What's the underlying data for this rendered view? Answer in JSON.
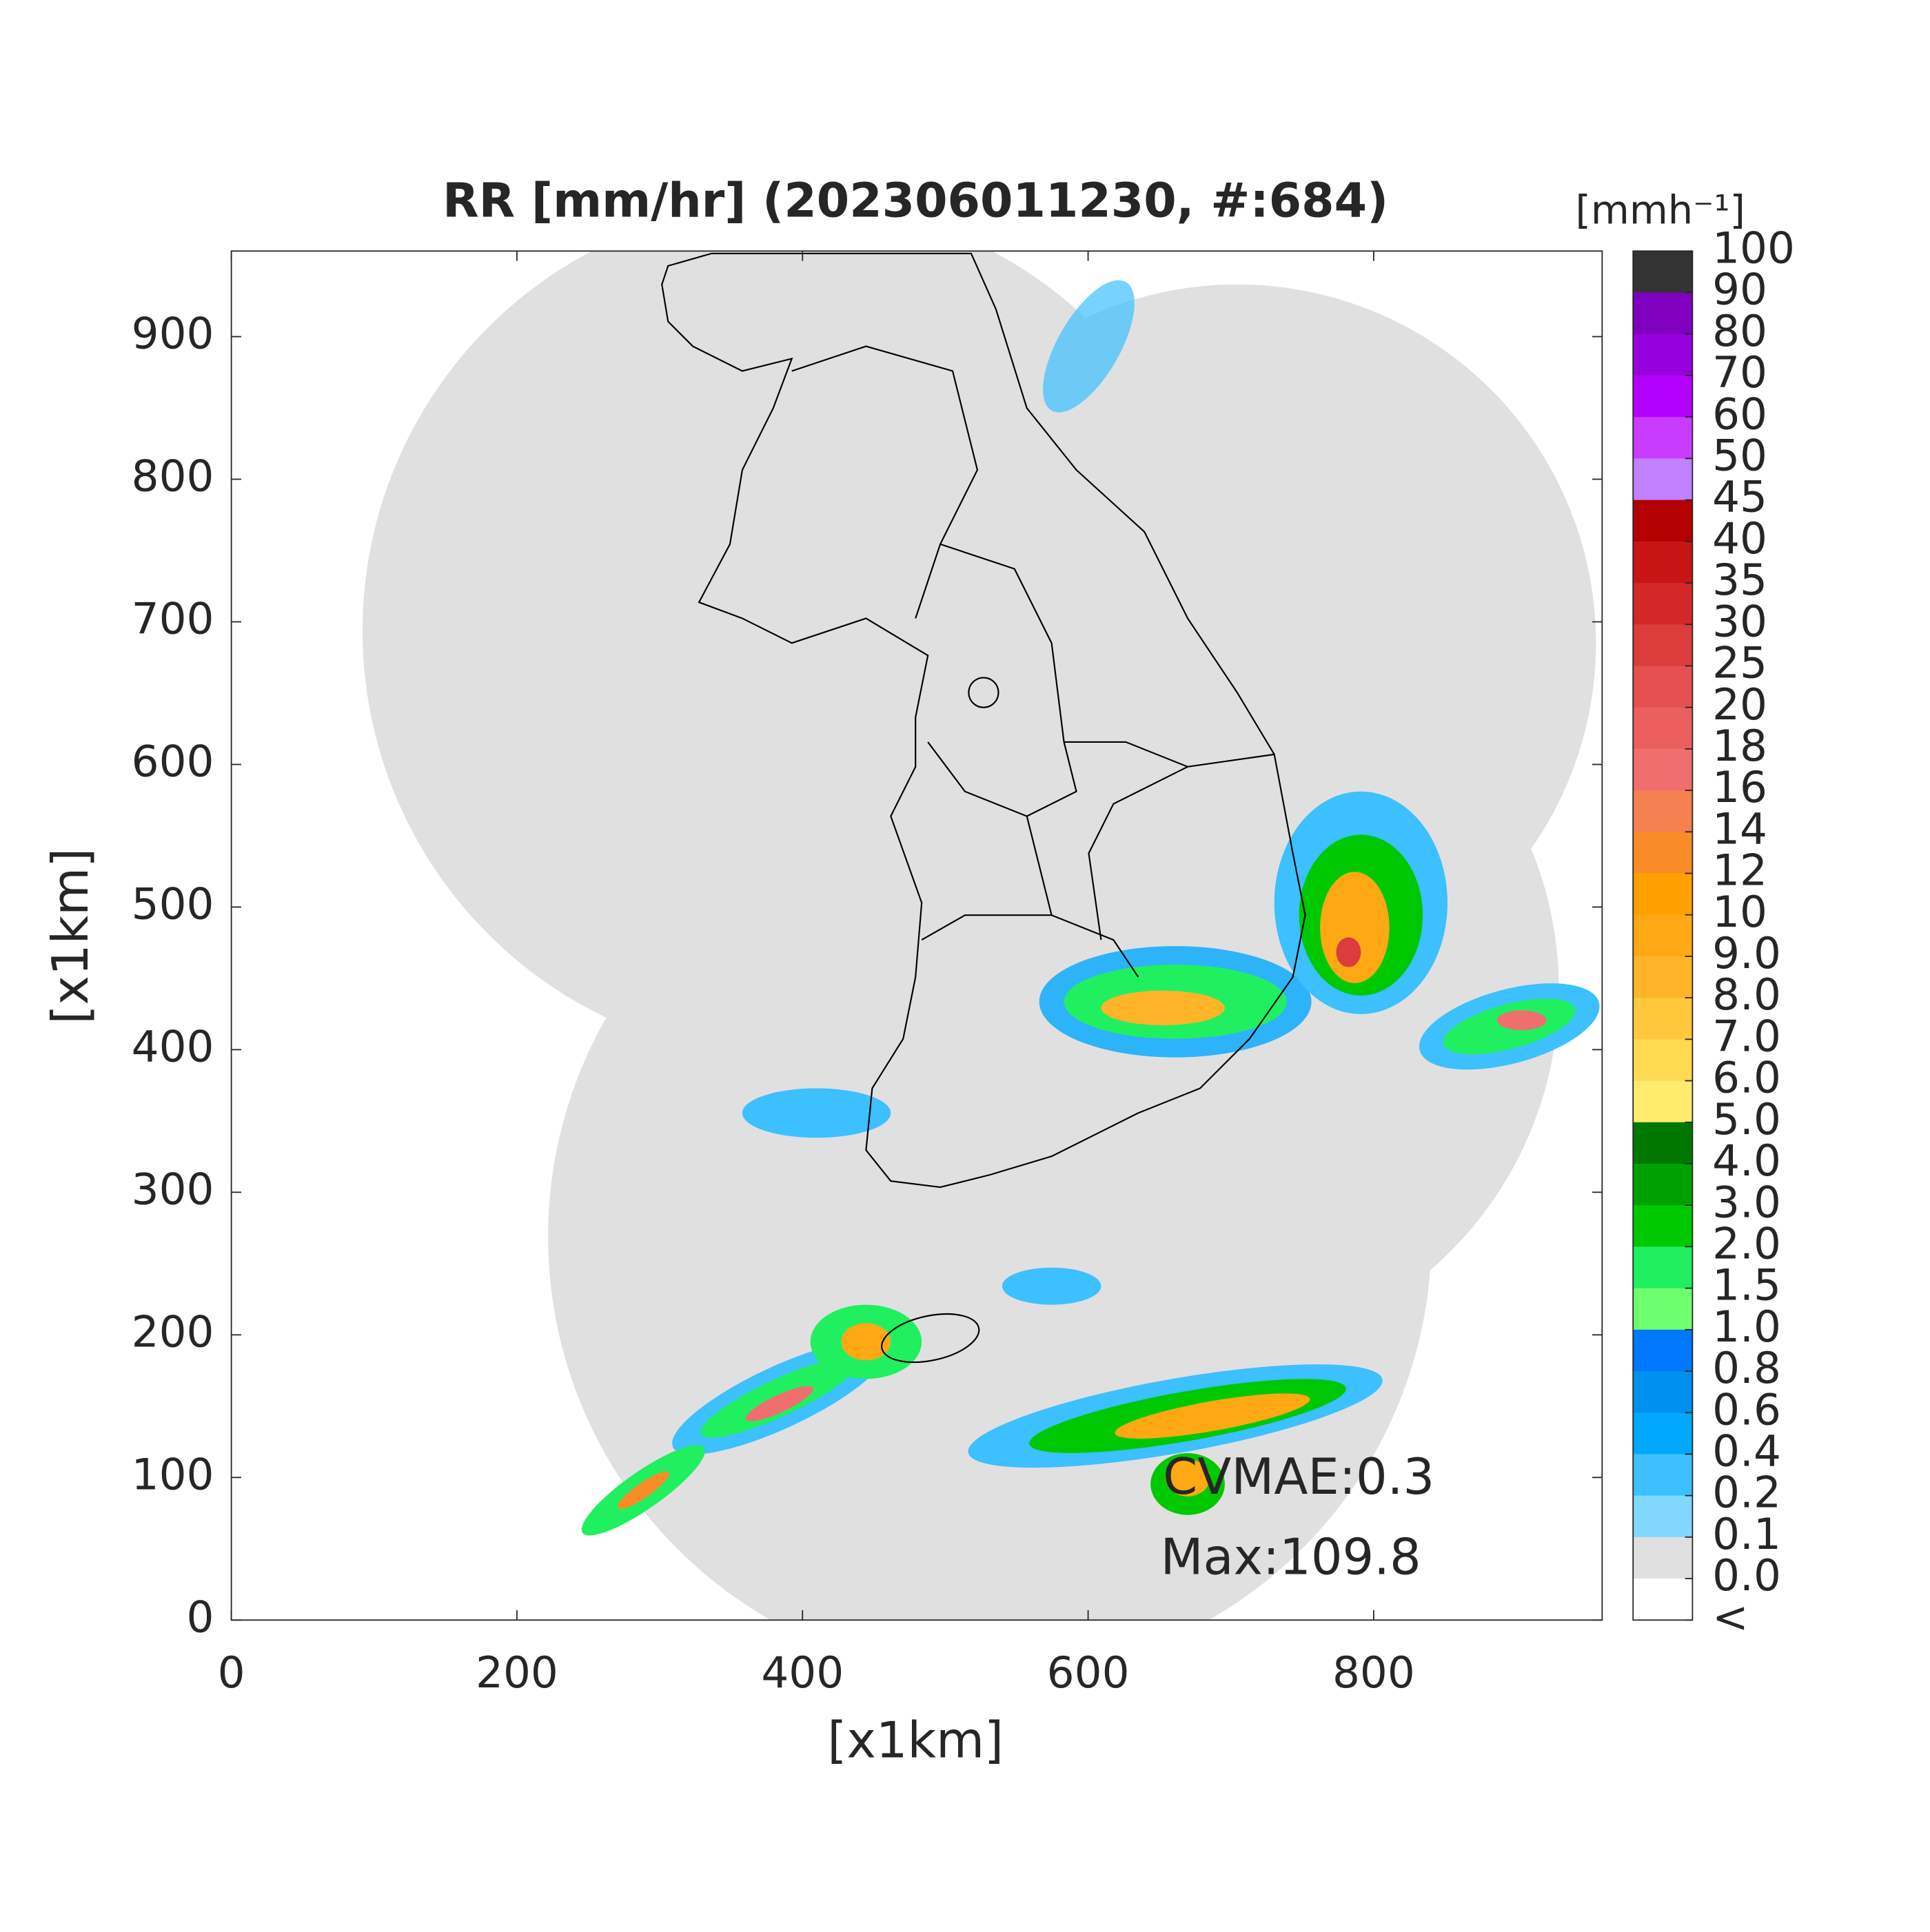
{
  "map": {
    "title": "RR [mm/hr] (202306011230, #:684)",
    "xlabel": "[x1km]",
    "ylabel": "[x1km]",
    "xlim": [
      0,
      960
    ],
    "ylim": [
      0,
      960
    ],
    "xticks": [
      0,
      200,
      400,
      600,
      800
    ],
    "yticks": [
      0,
      100,
      200,
      300,
      400,
      500,
      600,
      700,
      800,
      900
    ],
    "annotations": [
      "CVMAE:0.3",
      "Max:109.8"
    ],
    "colorbar": {
      "unit": "[mmh⁻¹]",
      "labels": [
        "100",
        "90",
        "80",
        "70",
        "60",
        "50",
        "45",
        "40",
        "35",
        "30",
        "25",
        "20",
        "18",
        "16",
        "14",
        "12",
        "10",
        "9.0",
        "8.0",
        "7.0",
        "6.0",
        "5.0",
        "4.0",
        "3.0",
        "2.0",
        "1.5",
        "1.0",
        "0.8",
        "0.6",
        "0.4",
        "0.2",
        "0.1",
        "0.0",
        "<"
      ],
      "colors": [
        "#333333",
        "#8000c0",
        "#9600dc",
        "#b400ff",
        "#c83cff",
        "#c080ff",
        "#b40000",
        "#c81414",
        "#d22828",
        "#dc3c3c",
        "#e65050",
        "#ec5f5f",
        "#f06e6e",
        "#f58050",
        "#fa8c28",
        "#ffa000",
        "#ffa814",
        "#ffb428",
        "#ffc83c",
        "#ffda50",
        "#ffec6e",
        "#007800",
        "#00a000",
        "#00c800",
        "#20f060",
        "#6eff6e",
        "#0078ff",
        "#0090f0",
        "#00a8ff",
        "#3cc0ff",
        "#80d8ff",
        "#e0e0e0",
        "#ffffff"
      ]
    }
  }
}
